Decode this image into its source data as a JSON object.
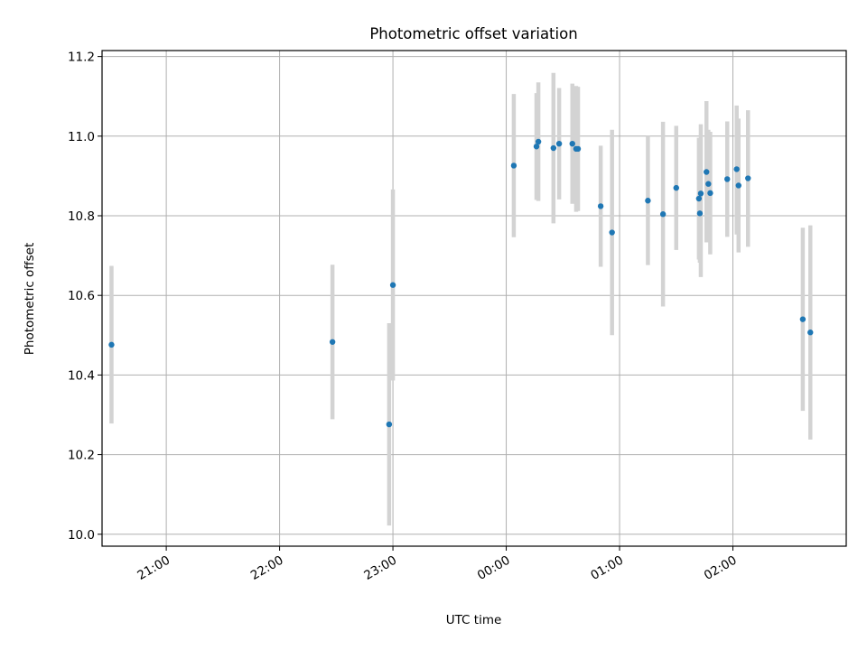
{
  "chart_data": {
    "type": "scatter",
    "title": "Photometric offset variation",
    "xlabel": "UTC time",
    "ylabel": "Photometric offset",
    "x_unit": "UTC datetime",
    "xlim": [
      "2020-01-01T20:26:00",
      "2020-01-02T03:00:00"
    ],
    "ylim": [
      9.97,
      11.215
    ],
    "x_ticks": [
      {
        "t": "2020-01-01T21:00:00",
        "label": "21:00"
      },
      {
        "t": "2020-01-01T22:00:00",
        "label": "22:00"
      },
      {
        "t": "2020-01-01T23:00:00",
        "label": "23:00"
      },
      {
        "t": "2020-01-02T00:00:00",
        "label": "00:00"
      },
      {
        "t": "2020-01-02T01:00:00",
        "label": "01:00"
      },
      {
        "t": "2020-01-02T02:00:00",
        "label": "02:00"
      }
    ],
    "y_ticks": [
      {
        "v": 10.0,
        "label": "10.0"
      },
      {
        "v": 10.2,
        "label": "10.2"
      },
      {
        "v": 10.4,
        "label": "10.4"
      },
      {
        "v": 10.6,
        "label": "10.6"
      },
      {
        "v": 10.8,
        "label": "10.8"
      },
      {
        "v": 11.0,
        "label": "11.0"
      },
      {
        "v": 11.2,
        "label": "11.2"
      }
    ],
    "grid": true,
    "colors": {
      "point": "#1f77b4",
      "errorbar": "#d3d3d3",
      "grid": "#b0b0b0",
      "axes": "#000000"
    },
    "points": [
      {
        "t": "2020-01-01T20:31:00",
        "y": 10.476,
        "ylo": 10.278,
        "yhi": 10.674
      },
      {
        "t": "2020-01-01T22:28:00",
        "y": 10.483,
        "ylo": 10.289,
        "yhi": 10.677
      },
      {
        "t": "2020-01-01T22:58:00",
        "y": 10.276,
        "ylo": 10.022,
        "yhi": 10.53
      },
      {
        "t": "2020-01-01T23:00:00",
        "y": 10.626,
        "ylo": 10.386,
        "yhi": 10.866
      },
      {
        "t": "2020-01-02T00:04:00",
        "y": 10.926,
        "ylo": 10.746,
        "yhi": 11.106
      },
      {
        "t": "2020-01-02T00:16:00",
        "y": 10.974,
        "ylo": 10.84,
        "yhi": 11.108
      },
      {
        "t": "2020-01-02T00:17:00",
        "y": 10.986,
        "ylo": 10.837,
        "yhi": 11.135
      },
      {
        "t": "2020-01-02T00:25:00",
        "y": 10.97,
        "ylo": 10.781,
        "yhi": 11.159
      },
      {
        "t": "2020-01-02T00:28:00",
        "y": 10.981,
        "ylo": 10.841,
        "yhi": 11.121
      },
      {
        "t": "2020-01-02T00:35:00",
        "y": 10.981,
        "ylo": 10.83,
        "yhi": 11.132
      },
      {
        "t": "2020-01-02T00:37:00",
        "y": 10.968,
        "ylo": 10.81,
        "yhi": 11.126
      },
      {
        "t": "2020-01-02T00:38:00",
        "y": 10.968,
        "ylo": 10.812,
        "yhi": 11.124
      },
      {
        "t": "2020-01-02T00:50:00",
        "y": 10.824,
        "ylo": 10.672,
        "yhi": 10.976
      },
      {
        "t": "2020-01-02T00:56:00",
        "y": 10.758,
        "ylo": 10.5,
        "yhi": 11.016
      },
      {
        "t": "2020-01-02T01:15:00",
        "y": 10.838,
        "ylo": 10.676,
        "yhi": 11.0
      },
      {
        "t": "2020-01-02T01:23:00",
        "y": 10.804,
        "ylo": 10.572,
        "yhi": 11.036
      },
      {
        "t": "2020-01-02T01:30:00",
        "y": 10.87,
        "ylo": 10.714,
        "yhi": 11.026
      },
      {
        "t": "2020-01-02T01:42:00",
        "y": 10.843,
        "ylo": 10.69,
        "yhi": 10.996
      },
      {
        "t": "2020-01-02T01:42:30",
        "y": 10.806,
        "ylo": 10.682,
        "yhi": 10.93
      },
      {
        "t": "2020-01-02T01:43:00",
        "y": 10.856,
        "ylo": 10.646,
        "yhi": 11.03
      },
      {
        "t": "2020-01-02T01:46:00",
        "y": 10.91,
        "ylo": 10.733,
        "yhi": 11.088
      },
      {
        "t": "2020-01-02T01:47:00",
        "y": 10.88,
        "ylo": 10.744,
        "yhi": 11.016
      },
      {
        "t": "2020-01-02T01:48:00",
        "y": 10.857,
        "ylo": 10.703,
        "yhi": 11.011
      },
      {
        "t": "2020-01-02T01:57:00",
        "y": 10.892,
        "ylo": 10.747,
        "yhi": 11.037
      },
      {
        "t": "2020-01-02T02:02:00",
        "y": 10.917,
        "ylo": 10.753,
        "yhi": 11.077
      },
      {
        "t": "2020-01-02T02:03:00",
        "y": 10.876,
        "ylo": 10.708,
        "yhi": 11.044
      },
      {
        "t": "2020-01-02T02:08:00",
        "y": 10.894,
        "ylo": 10.722,
        "yhi": 11.065
      },
      {
        "t": "2020-01-02T02:37:00",
        "y": 10.54,
        "ylo": 10.31,
        "yhi": 10.77
      },
      {
        "t": "2020-01-02T02:41:00",
        "y": 10.507,
        "ylo": 10.238,
        "yhi": 10.776
      }
    ]
  }
}
